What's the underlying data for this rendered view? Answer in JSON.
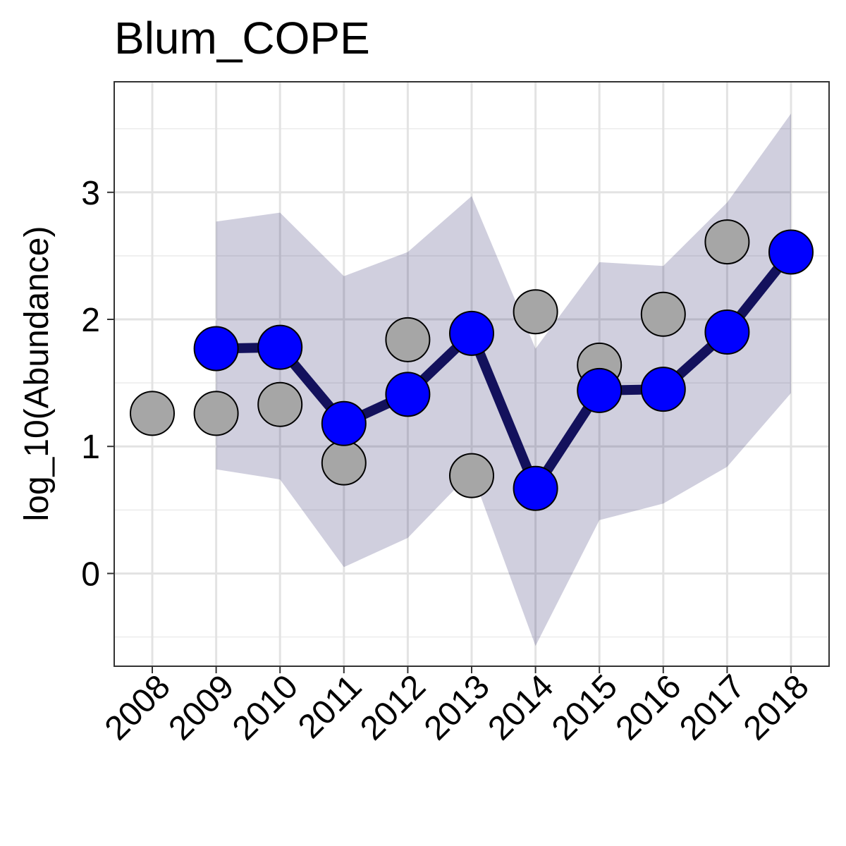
{
  "chart_data": {
    "type": "line",
    "title": "Blum_COPE",
    "xlabel": "",
    "ylabel": "log_10(Abundance)",
    "x": [
      "2008",
      "2009",
      "2010",
      "2011",
      "2012",
      "2013",
      "2014",
      "2015",
      "2016",
      "2017",
      "2018"
    ],
    "ylim": [
      -0.73,
      3.87
    ],
    "y_ticks": [
      0,
      1,
      2,
      3
    ],
    "y_tick_labels": [
      "0",
      "1",
      "2",
      "3"
    ],
    "grid": true,
    "observed": {
      "values": [
        1.26,
        1.26,
        1.33,
        0.87,
        1.84,
        0.77,
        2.06,
        1.64,
        2.04,
        2.61,
        null
      ],
      "color": "#a6a6a6"
    },
    "estimate": {
      "values": [
        null,
        1.77,
        1.78,
        1.18,
        1.41,
        1.89,
        0.67,
        1.44,
        1.45,
        1.9,
        2.53
      ],
      "color": "#0000ff",
      "line_color": "#13115c"
    },
    "interval": {
      "lower": [
        null,
        0.82,
        0.74,
        0.05,
        0.28,
        0.8,
        -0.57,
        0.42,
        0.55,
        0.84,
        1.42
      ],
      "upper": [
        null,
        2.77,
        2.84,
        2.34,
        2.53,
        2.97,
        1.77,
        2.45,
        2.42,
        2.92,
        3.62
      ],
      "color": "#13115c"
    }
  }
}
